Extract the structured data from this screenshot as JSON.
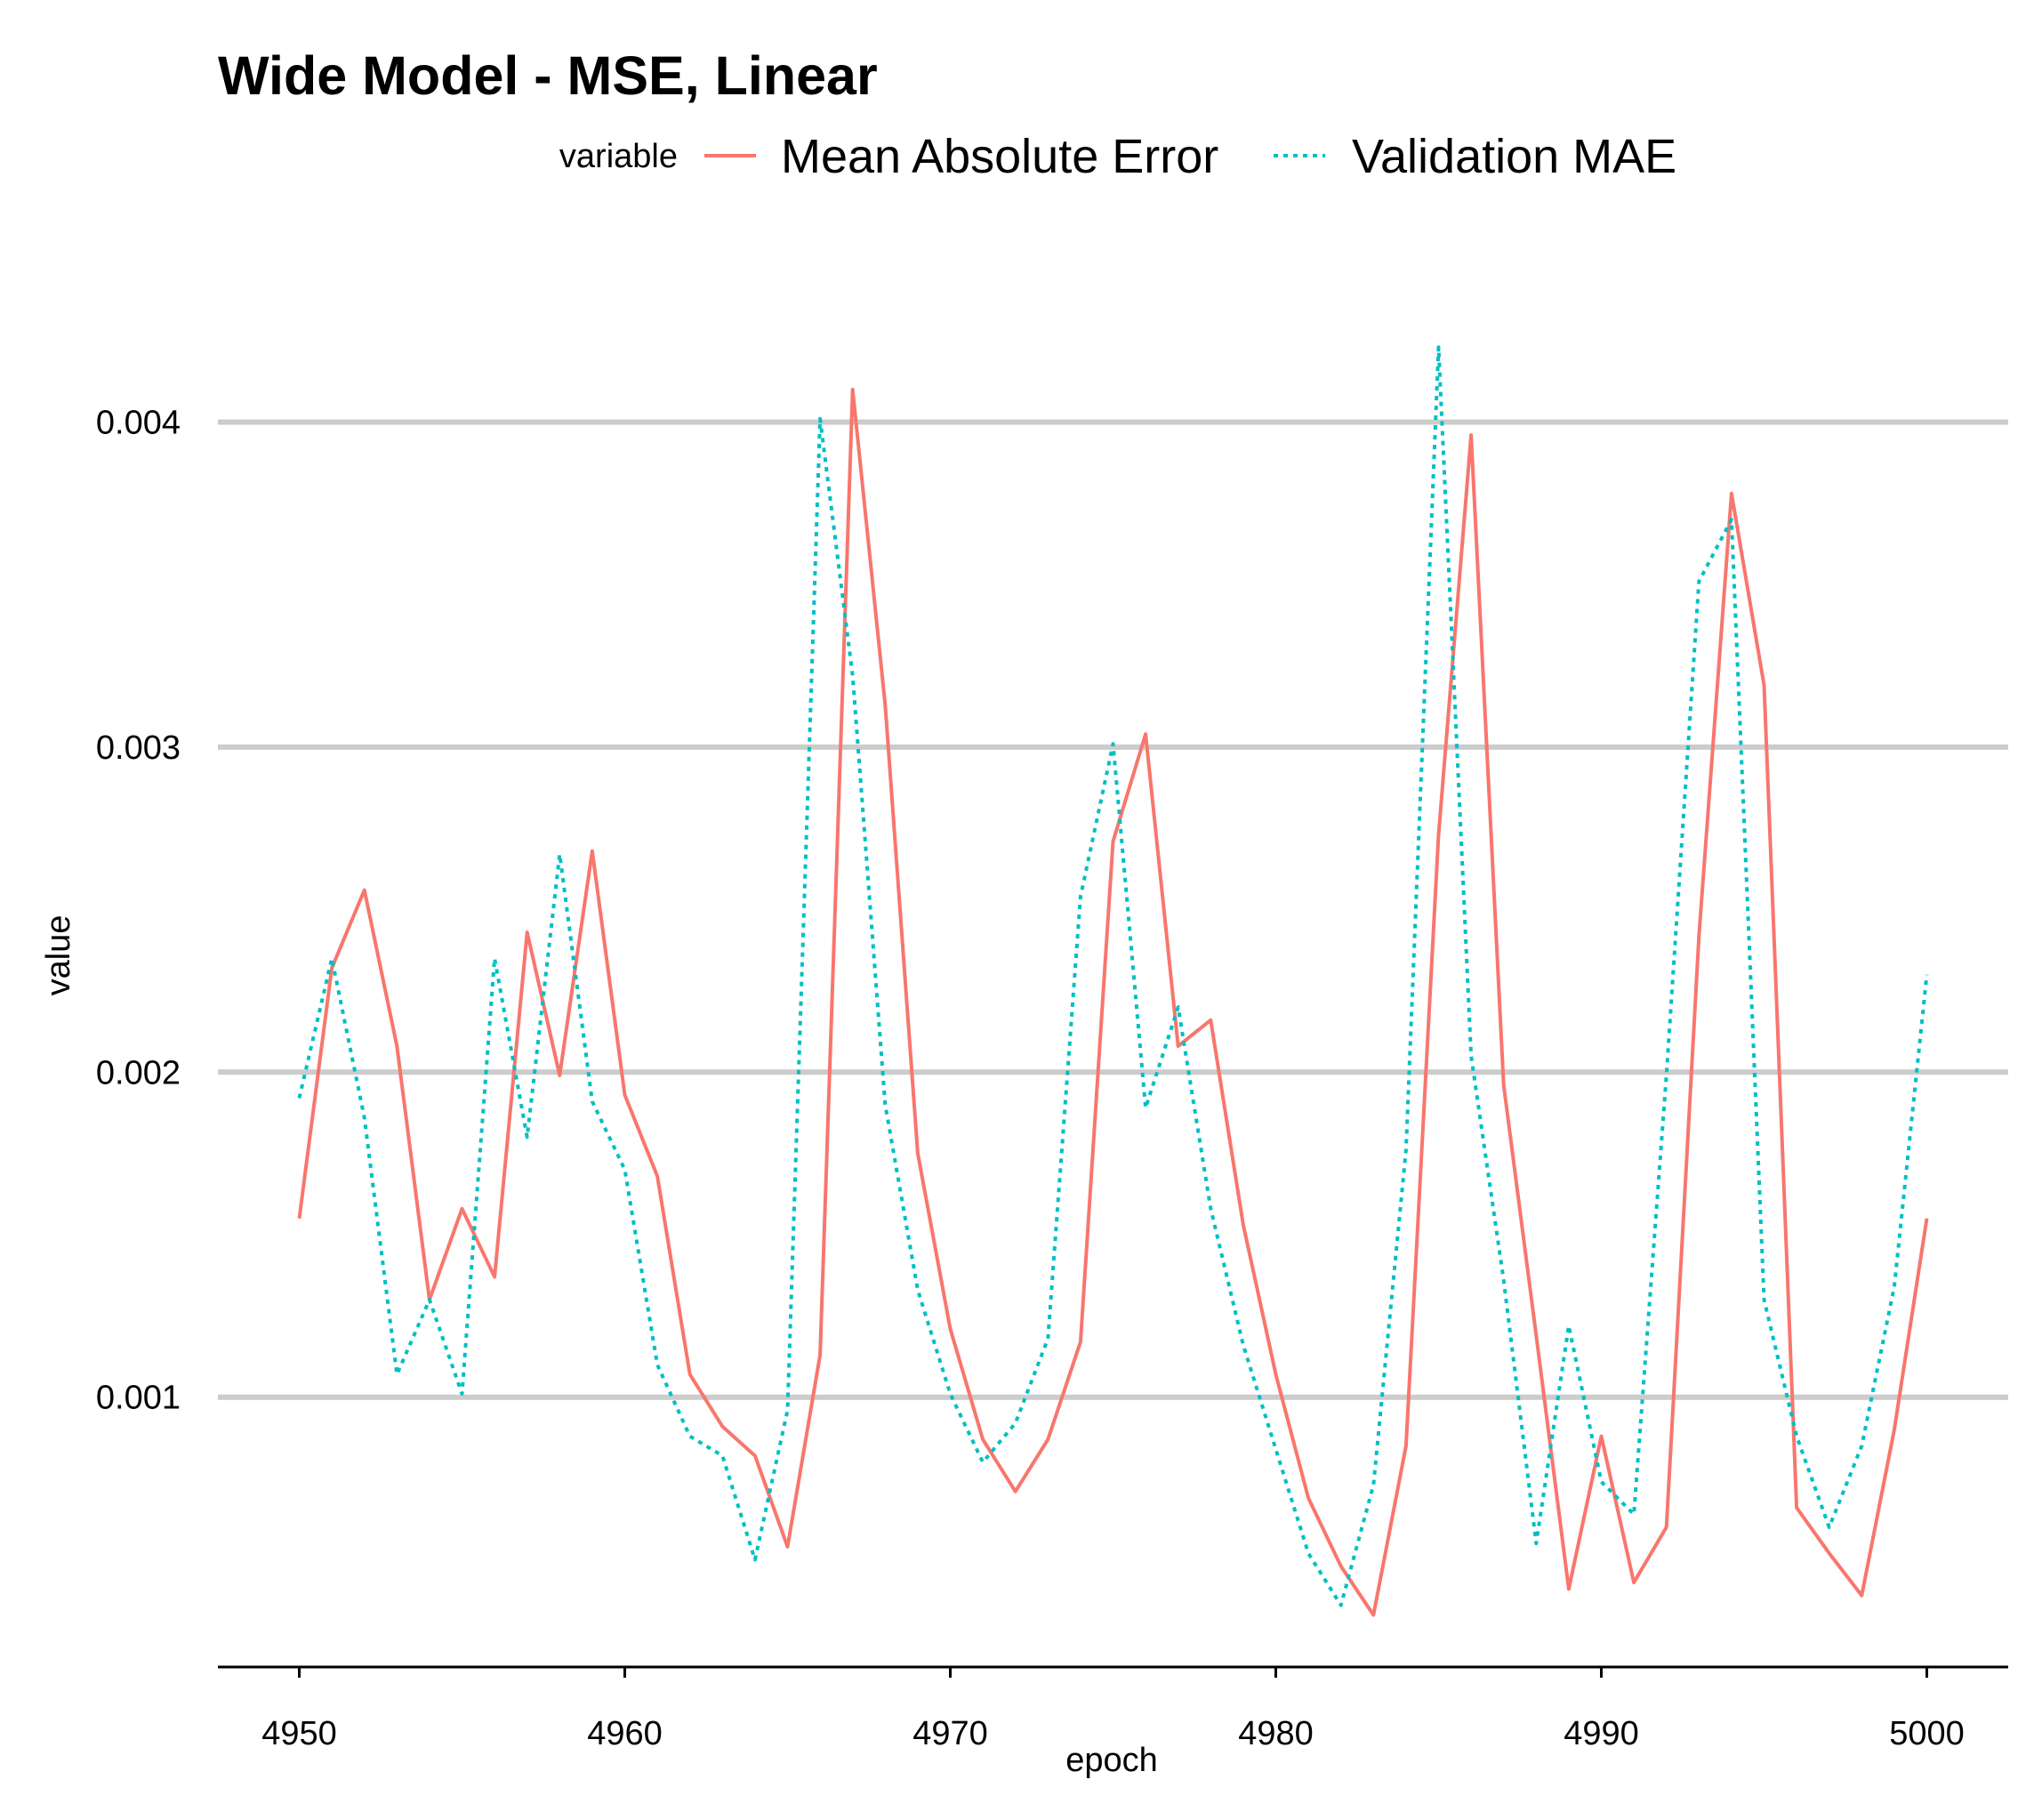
{
  "chart_data": {
    "type": "line",
    "title": "Wide Model - MSE, Linear",
    "xlabel": "epoch",
    "ylabel": "value",
    "legend_title": "variable",
    "legend_position": "top",
    "grid": "horizontal major",
    "xlim": [
      4947.5,
      5002.5
    ],
    "ylim": [
      0.00017,
      0.00445
    ],
    "x_ticks": [
      4950,
      4960,
      4970,
      4980,
      4990,
      5000
    ],
    "x_tick_labels": [
      "4950",
      "4960",
      "4970",
      "4980",
      "4990",
      "5000"
    ],
    "y_ticks": [
      0.001,
      0.002,
      0.003,
      0.004
    ],
    "y_tick_labels": [
      "0.001",
      "0.002",
      "0.003",
      "0.004"
    ],
    "x": [
      4950,
      4951,
      4952,
      4953,
      4954,
      4955,
      4956,
      4957,
      4958,
      4959,
      4960,
      4961,
      4962,
      4963,
      4964,
      4965,
      4966,
      4967,
      4968,
      4969,
      4970,
      4971,
      4972,
      4973,
      4974,
      4975,
      4976,
      4977,
      4978,
      4979,
      4980,
      4981,
      4982,
      4983,
      4984,
      4985,
      4986,
      4987,
      4988,
      4989,
      4990,
      4991,
      4992,
      4993,
      4994,
      4995,
      4996,
      4997,
      4998,
      4999,
      5000
    ],
    "series": [
      {
        "name": "Mean Absolute Error",
        "color": "#F8766D",
        "dash": "solid",
        "values": [
          0.00155,
          0.00232,
          0.00256,
          0.00208,
          0.0013,
          0.00158,
          0.00137,
          0.00243,
          0.00199,
          0.00268,
          0.00193,
          0.00168,
          0.00107,
          0.00091,
          0.00082,
          0.00054,
          0.00113,
          0.0041,
          0.00313,
          0.00175,
          0.00121,
          0.00087,
          0.00071,
          0.00087,
          0.00117,
          0.00271,
          0.00304,
          0.00208,
          0.00216,
          0.00153,
          0.00107,
          0.00069,
          0.00048,
          0.00033,
          0.00085,
          0.00273,
          0.00396,
          0.00196,
          0.00119,
          0.00041,
          0.00088,
          0.00043,
          0.0006,
          0.00242,
          0.00378,
          0.00319,
          0.00066,
          0.00052,
          0.00039,
          0.0009,
          0.00155
        ]
      },
      {
        "name": "Validation MAE",
        "color": "#00BFC4",
        "dash": "dotted",
        "values": [
          0.00192,
          0.00235,
          0.00186,
          0.00107,
          0.0013,
          0.00101,
          0.00235,
          0.0018,
          0.00267,
          0.00191,
          0.0017,
          0.0011,
          0.00088,
          0.00082,
          0.0005,
          0.00096,
          0.00401,
          0.00322,
          0.0019,
          0.00133,
          0.00101,
          0.0008,
          0.00092,
          0.00118,
          0.00254,
          0.00301,
          0.00189,
          0.0022,
          0.00158,
          0.00116,
          0.00084,
          0.00052,
          0.00036,
          0.00073,
          0.00176,
          0.00423,
          0.00205,
          0.00136,
          0.00055,
          0.00122,
          0.00074,
          0.00064,
          0.00199,
          0.00351,
          0.0037,
          0.0013,
          0.00088,
          0.0006,
          0.00085,
          0.00134,
          0.0023
        ]
      }
    ]
  }
}
